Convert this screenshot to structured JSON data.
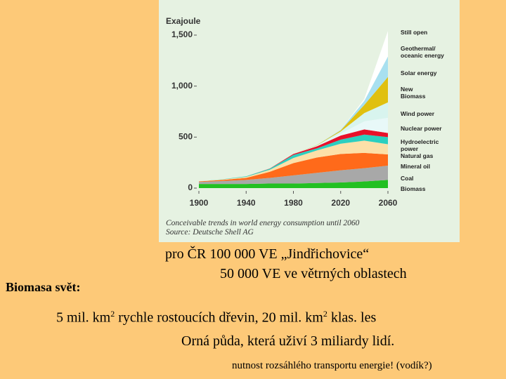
{
  "chart_data": {
    "type": "stacked-area",
    "y_label": "Exajoule",
    "caption": "Conceivable trends in world energy consumption until 2060",
    "source": "Source: Deutsche Shell AG",
    "x": [
      1900,
      1920,
      1940,
      1960,
      1980,
      2000,
      2020,
      2040,
      2060
    ],
    "xlim": [
      1900,
      2060
    ],
    "xticks": [
      1900,
      1940,
      1980,
      2020,
      2060
    ],
    "ylim": [
      0,
      1500
    ],
    "yticks": [
      0,
      500,
      {
        "value": 1000,
        "label": "1,000"
      },
      {
        "value": 1500,
        "label": "1,500"
      }
    ],
    "grid": false,
    "series": [
      {
        "name": "Biomass",
        "color": "#22c022",
        "values": [
          40,
          40,
          40,
          45,
          45,
          50,
          55,
          65,
          80
        ]
      },
      {
        "name": "Coal",
        "color": "#a8a8a8",
        "values": [
          20,
          30,
          40,
          55,
          80,
          100,
          120,
          130,
          140
        ]
      },
      {
        "name": "Mineral oil",
        "color": "#ff6a1a",
        "values": [
          5,
          10,
          20,
          60,
          120,
          150,
          160,
          150,
          110
        ]
      },
      {
        "name": "Natural gas",
        "color": "#fce0a8",
        "values": [
          0,
          5,
          10,
          20,
          50,
          70,
          100,
          120,
          100
        ]
      },
      {
        "name": "Hydroelectric\npower",
        "color": "#2ccfc0",
        "values": [
          0,
          2,
          5,
          10,
          30,
          20,
          40,
          60,
          70
        ]
      },
      {
        "name": "Nuclear power",
        "color": "#e8102a",
        "values": [
          0,
          0,
          0,
          2,
          10,
          20,
          40,
          50,
          40
        ]
      },
      {
        "name": "Wind power",
        "color": "#e8f8f8",
        "values": [
          0,
          0,
          0,
          0,
          0,
          5,
          20,
          80,
          150
        ]
      },
      {
        "name": "New\nBiomass",
        "color": "#d8f4ee",
        "values": [
          0,
          0,
          0,
          0,
          0,
          5,
          20,
          80,
          150
        ]
      },
      {
        "name": "Solar energy",
        "color": "#e0c010",
        "values": [
          0,
          0,
          0,
          0,
          0,
          2,
          10,
          80,
          250
        ]
      },
      {
        "name": "Geothermal/\noceanic energy",
        "color": "#a8e0f0",
        "values": [
          0,
          0,
          0,
          0,
          0,
          1,
          5,
          40,
          200
        ]
      },
      {
        "name": "Still open",
        "color": "#ffffff",
        "values": [
          0,
          0,
          0,
          0,
          0,
          0,
          0,
          20,
          250
        ]
      }
    ]
  },
  "slide": {
    "line1": "pro ČR 100 000 VE „Jindřichovice“",
    "line2": "50 000 VE ve větrných oblastech",
    "heading": "Biomasa svět:",
    "line3": [
      "5 mil. km",
      "2",
      " rychle rostoucích dřevin, 20 mil. km",
      "2",
      " klas. les"
    ],
    "line4": "Orná půda, která uživí 3 miliardy lidí.",
    "note": "nutnost rozsáhlého transportu energie! (vodík?)"
  }
}
